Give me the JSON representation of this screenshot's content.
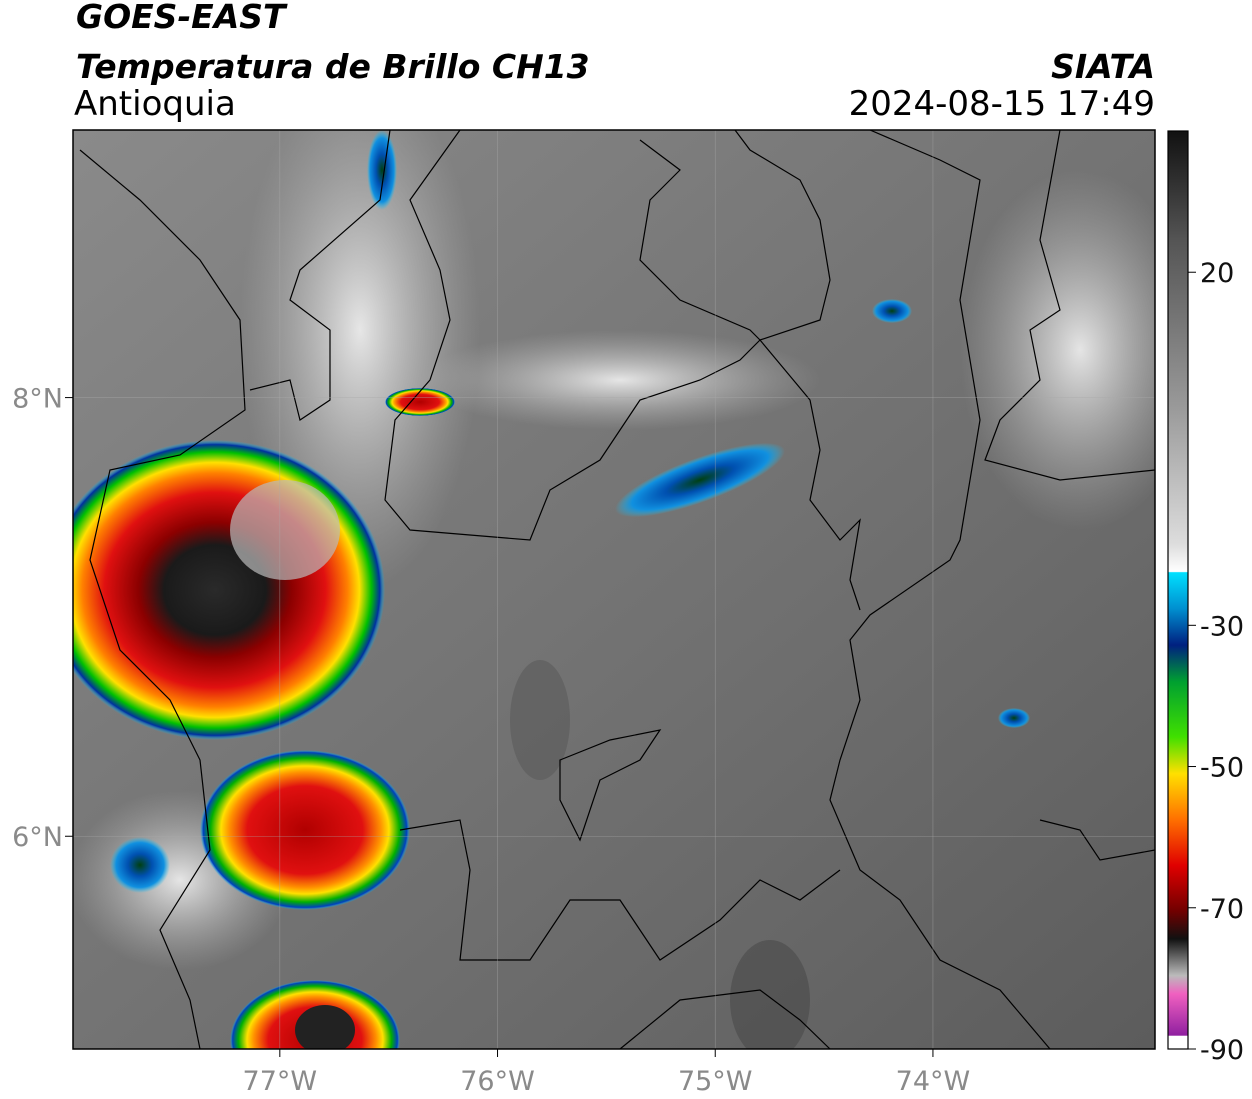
{
  "header": {
    "satellite": "GOES-EAST",
    "product": "Temperatura de Brillo CH13",
    "region": "Antioquia",
    "source": "SIATA",
    "datetime": "2024-08-15 17:49"
  },
  "map": {
    "lon_range": [
      -77.95,
      -72.98
    ],
    "lat_range": [
      5.03,
      9.22
    ],
    "lon_ticks": [
      {
        "value": -77,
        "label": "77°W"
      },
      {
        "value": -76,
        "label": "76°W"
      },
      {
        "value": -75,
        "label": "75°W"
      },
      {
        "value": -74,
        "label": "74°W"
      }
    ],
    "lat_ticks": [
      {
        "value": 8,
        "label": "8°N"
      },
      {
        "value": 6,
        "label": "6°N"
      }
    ]
  },
  "colorbar": {
    "range": [
      -90,
      40
    ],
    "ticks": [
      20,
      -30,
      -50,
      -70,
      -90
    ]
  }
}
